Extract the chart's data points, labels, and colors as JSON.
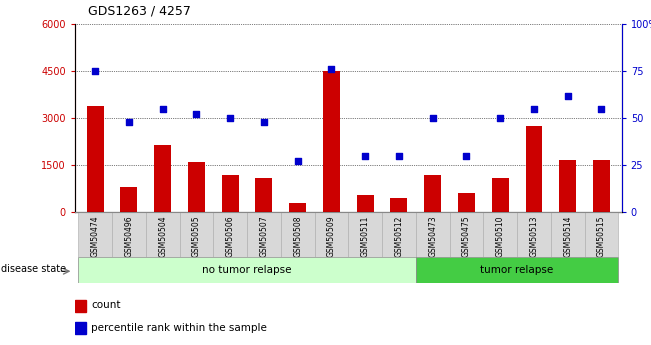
{
  "title": "GDS1263 / 4257",
  "samples": [
    "GSM50474",
    "GSM50496",
    "GSM50504",
    "GSM50505",
    "GSM50506",
    "GSM50507",
    "GSM50508",
    "GSM50509",
    "GSM50511",
    "GSM50512",
    "GSM50473",
    "GSM50475",
    "GSM50510",
    "GSM50513",
    "GSM50514",
    "GSM50515"
  ],
  "counts": [
    3400,
    800,
    2150,
    1600,
    1200,
    1100,
    300,
    4500,
    550,
    450,
    1200,
    600,
    1100,
    2750,
    1650,
    1650
  ],
  "percentiles": [
    75,
    48,
    55,
    52,
    50,
    48,
    27,
    76,
    30,
    30,
    50,
    30,
    50,
    55,
    62,
    55
  ],
  "no_tumor_count": 10,
  "ylim_left": [
    0,
    6000
  ],
  "ylim_right": [
    0,
    100
  ],
  "yticks_left": [
    0,
    1500,
    3000,
    4500,
    6000
  ],
  "yticks_right": [
    0,
    25,
    50,
    75,
    100
  ],
  "bar_color": "#cc0000",
  "scatter_color": "#0000cc",
  "no_tumor_facecolor": "#ccffcc",
  "tumor_facecolor": "#44cc44",
  "label_no_tumor": "no tumor relapse",
  "label_tumor": "tumor relapse",
  "disease_state_label": "disease state",
  "legend_count": "count",
  "legend_percentile": "percentile rank within the sample",
  "bar_width": 0.5,
  "tick_label_bg": "#dddddd"
}
